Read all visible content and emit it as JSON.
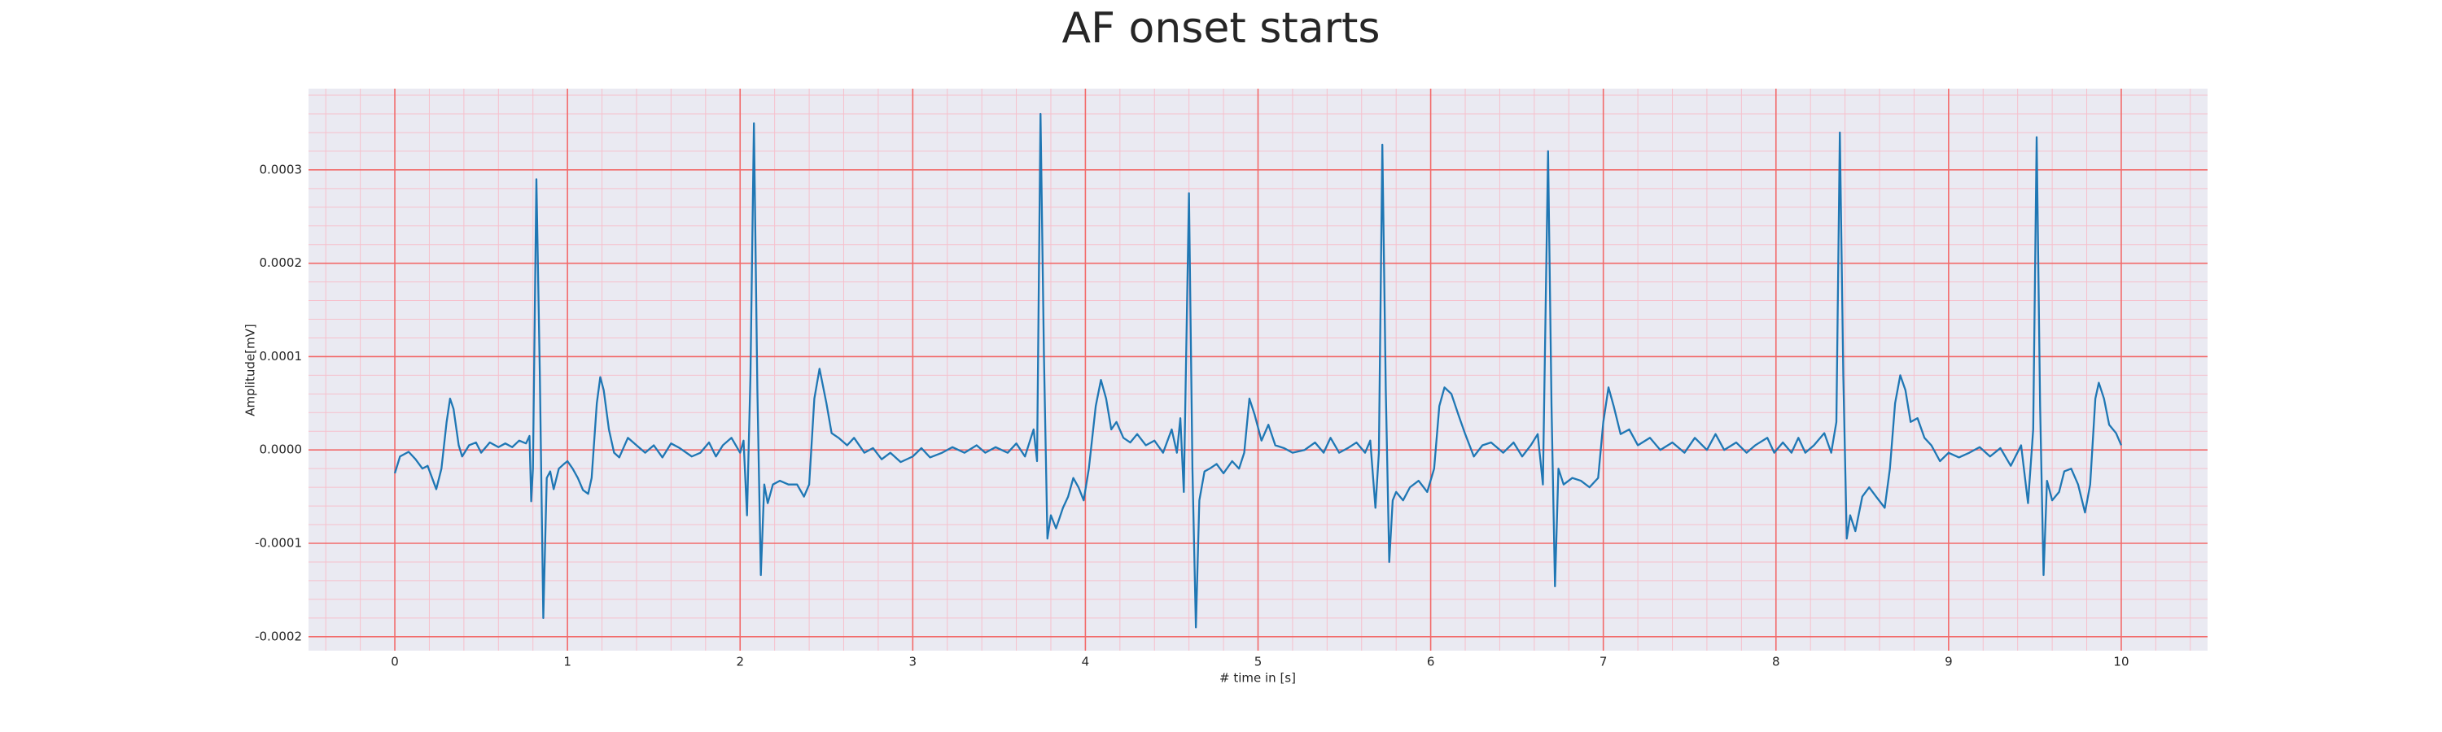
{
  "chart_data": {
    "type": "line",
    "title": "AF onset starts",
    "xlabel": "# time in [s]",
    "ylabel": "Amplitude[mV]",
    "x": [
      0,
      0.03,
      0.08,
      0.12,
      0.16,
      0.19,
      0.22,
      0.24,
      0.27,
      0.3,
      0.32,
      0.34,
      0.37,
      0.39,
      0.43,
      0.47,
      0.5,
      0.55,
      0.6,
      0.64,
      0.68,
      0.72,
      0.76,
      0.78,
      0.79,
      0.8,
      0.82,
      0.84,
      0.86,
      0.88,
      0.9,
      0.92,
      0.95,
      0.98,
      1.0,
      1.03,
      1.06,
      1.09,
      1.12,
      1.14,
      1.17,
      1.19,
      1.21,
      1.24,
      1.27,
      1.3,
      1.35,
      1.4,
      1.45,
      1.5,
      1.55,
      1.6,
      1.65,
      1.72,
      1.77,
      1.82,
      1.86,
      1.9,
      1.95,
      2.0,
      2.02,
      2.04,
      2.06,
      2.08,
      2.1,
      2.12,
      2.14,
      2.16,
      2.19,
      2.23,
      2.28,
      2.33,
      2.37,
      2.4,
      2.43,
      2.46,
      2.5,
      2.53,
      2.57,
      2.62,
      2.66,
      2.72,
      2.77,
      2.82,
      2.87,
      2.93,
      3.0,
      3.05,
      3.1,
      3.17,
      3.23,
      3.3,
      3.37,
      3.42,
      3.48,
      3.55,
      3.6,
      3.65,
      3.7,
      3.72,
      3.74,
      3.76,
      3.78,
      3.8,
      3.83,
      3.87,
      3.9,
      3.93,
      3.96,
      3.99,
      4.02,
      4.06,
      4.09,
      4.12,
      4.15,
      4.18,
      4.22,
      4.26,
      4.3,
      4.35,
      4.4,
      4.45,
      4.5,
      4.53,
      4.55,
      4.57,
      4.6,
      4.62,
      4.64,
      4.66,
      4.69,
      4.72,
      4.76,
      4.8,
      4.85,
      4.89,
      4.92,
      4.95,
      4.98,
      5.02,
      5.06,
      5.1,
      5.15,
      5.2,
      5.27,
      5.33,
      5.38,
      5.42,
      5.47,
      5.52,
      5.57,
      5.62,
      5.65,
      5.68,
      5.7,
      5.72,
      5.74,
      5.76,
      5.78,
      5.8,
      5.84,
      5.88,
      5.93,
      5.98,
      6.02,
      6.05,
      6.08,
      6.12,
      6.16,
      6.2,
      6.25,
      6.3,
      6.35,
      6.42,
      6.48,
      6.53,
      6.58,
      6.62,
      6.65,
      6.68,
      6.7,
      6.72,
      6.74,
      6.77,
      6.82,
      6.87,
      6.92,
      6.97,
      7.0,
      7.03,
      7.06,
      7.1,
      7.15,
      7.2,
      7.27,
      7.33,
      7.4,
      7.47,
      7.53,
      7.6,
      7.65,
      7.7,
      7.77,
      7.83,
      7.88,
      7.95,
      7.99,
      8.04,
      8.09,
      8.13,
      8.17,
      8.22,
      8.28,
      8.32,
      8.35,
      8.37,
      8.39,
      8.41,
      8.43,
      8.46,
      8.5,
      8.54,
      8.58,
      8.63,
      8.66,
      8.69,
      8.72,
      8.75,
      8.78,
      8.82,
      8.86,
      8.9,
      8.95,
      9.0,
      9.06,
      9.12,
      9.18,
      9.24,
      9.3,
      9.36,
      9.42,
      9.46,
      9.49,
      9.51,
      9.53,
      9.55,
      9.57,
      9.6,
      9.64,
      9.67,
      9.71,
      9.75,
      9.79,
      9.82,
      9.85,
      9.87,
      9.9,
      9.93,
      9.97,
      10.0
    ],
    "series": [
      {
        "color": "#1f77b4",
        "values": [
          -2.5e-05,
          -7e-06,
          -2e-06,
          -1e-05,
          -2e-05,
          -1.7e-05,
          -3.2e-05,
          -4.2e-05,
          -2e-05,
          3e-05,
          5.5e-05,
          4.4e-05,
          5e-06,
          -7e-06,
          5e-06,
          8e-06,
          -3e-06,
          8e-06,
          3e-06,
          7e-06,
          3e-06,
          1e-05,
          7e-06,
          1.5e-05,
          -5.5e-05,
          -2e-05,
          0.00029,
          8e-05,
          -0.00018,
          -3e-05,
          -2.3e-05,
          -4.2e-05,
          -2e-05,
          -1.5e-05,
          -1.2e-05,
          -2e-05,
          -3e-05,
          -4.3e-05,
          -4.7e-05,
          -3e-05,
          5e-05,
          7.8e-05,
          6.4e-05,
          2.2e-05,
          -3e-06,
          -8e-06,
          1.3e-05,
          5e-06,
          -3e-06,
          5e-06,
          -8e-06,
          7e-06,
          2e-06,
          -7e-06,
          -3e-06,
          8e-06,
          -7e-06,
          5e-06,
          1.3e-05,
          -3e-06,
          1e-05,
          -7e-05,
          8e-05,
          0.00035,
          6.4e-05,
          -0.000134,
          -3.7e-05,
          -5.7e-05,
          -3.7e-05,
          -3.3e-05,
          -3.7e-05,
          -3.7e-05,
          -5e-05,
          -3.7e-05,
          5.5e-05,
          8.7e-05,
          5e-05,
          1.8e-05,
          1.3e-05,
          5e-06,
          1.3e-05,
          -3e-06,
          2e-06,
          -1e-05,
          -3e-06,
          -1.3e-05,
          -7e-06,
          2e-06,
          -8e-06,
          -3e-06,
          3e-06,
          -3e-06,
          5e-06,
          -3e-06,
          3e-06,
          -3e-06,
          7e-06,
          -7e-06,
          2.2e-05,
          -1.2e-05,
          0.00036,
          0.0001,
          -9.5e-05,
          -7e-05,
          -8.4e-05,
          -6.2e-05,
          -5e-05,
          -3e-05,
          -4e-05,
          -5.4e-05,
          -2e-05,
          4.7e-05,
          7.5e-05,
          5.5e-05,
          2.2e-05,
          3e-05,
          1.3e-05,
          8e-06,
          1.7e-05,
          5e-06,
          1e-05,
          -3e-06,
          2.2e-05,
          -3e-06,
          3.4e-05,
          -4.5e-05,
          0.000275,
          -2e-05,
          -0.00019,
          -5.4e-05,
          -2.3e-05,
          -2e-05,
          -1.5e-05,
          -2.5e-05,
          -1.2e-05,
          -2e-05,
          -3e-06,
          5.5e-05,
          3.8e-05,
          1e-05,
          2.7e-05,
          5e-06,
          2e-06,
          -3e-06,
          0,
          8e-06,
          -3e-06,
          1.3e-05,
          -3e-06,
          2e-06,
          8e-06,
          -3e-06,
          1e-05,
          -6.2e-05,
          -3e-06,
          0.000327,
          6.4e-05,
          -0.00012,
          -5.4e-05,
          -4.5e-05,
          -5.4e-05,
          -4e-05,
          -3.3e-05,
          -4.5e-05,
          -2e-05,
          4.7e-05,
          6.7e-05,
          6e-05,
          3.8e-05,
          1.7e-05,
          -7e-06,
          5e-06,
          8e-06,
          -3e-06,
          8e-06,
          -7e-06,
          5e-06,
          1.7e-05,
          -3.7e-05,
          0.00032,
          4.7e-05,
          -0.000146,
          -2e-05,
          -3.7e-05,
          -3e-05,
          -3.3e-05,
          -4e-05,
          -3e-05,
          3e-05,
          6.7e-05,
          4.7e-05,
          1.7e-05,
          2.2e-05,
          5e-06,
          1.3e-05,
          0,
          8e-06,
          -3e-06,
          1.3e-05,
          0,
          1.7e-05,
          0,
          8e-06,
          -3e-06,
          5e-06,
          1.3e-05,
          -3e-06,
          8e-06,
          -3e-06,
          1.3e-05,
          -3e-06,
          5e-06,
          1.8e-05,
          -3e-06,
          3e-05,
          0.00034,
          8e-05,
          -9.5e-05,
          -7e-05,
          -8.7e-05,
          -5e-05,
          -4e-05,
          -5e-05,
          -6.2e-05,
          -2e-05,
          5e-05,
          8e-05,
          6.4e-05,
          3e-05,
          3.4e-05,
          1.3e-05,
          5e-06,
          -1.2e-05,
          -3e-06,
          -8e-06,
          -3e-06,
          3e-06,
          -7e-06,
          2e-06,
          -1.7e-05,
          5e-06,
          -5.7e-05,
          2.2e-05,
          0.000335,
          4.7e-05,
          -0.000134,
          -3.3e-05,
          -5.4e-05,
          -4.5e-05,
          -2.3e-05,
          -2e-05,
          -3.7e-05,
          -6.7e-05,
          -3.7e-05,
          5.5e-05,
          7.2e-05,
          5.5e-05,
          2.7e-05,
          1.8e-05,
          5e-06
        ]
      }
    ],
    "xlim": [
      -0.5,
      10.5
    ],
    "xticks": [
      0,
      1,
      2,
      3,
      4,
      5,
      6,
      7,
      8,
      9,
      10
    ],
    "ylim": [
      -0.000215,
      0.000387
    ],
    "yticks": [
      -0.0002,
      -0.0001,
      {
        "value": 0,
        "label": "0.0000"
      },
      0.0001,
      0.0002,
      0.0003
    ],
    "grid": true,
    "minor_grid": true
  }
}
